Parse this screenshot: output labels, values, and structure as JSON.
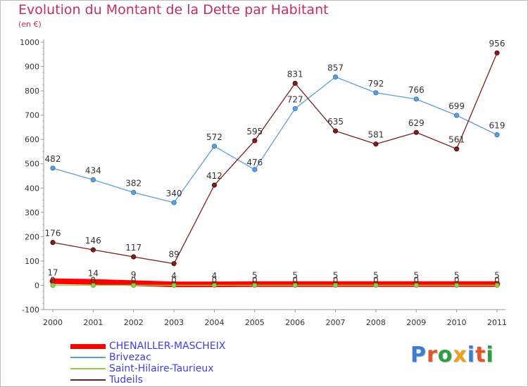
{
  "title": "Evolution du Montant de la Dette par Habitant",
  "subtitle": "(en €)",
  "logo": {
    "text": "Proxiti",
    "colors": [
      "#3b7fd0",
      "#e0552a",
      "#2e9e3e",
      "#f0a020",
      "#3b7fd0",
      "#e0552a",
      "#2e9e3e"
    ]
  },
  "chart_data": {
    "type": "line",
    "title": "Evolution du Montant de la Dette par Habitant",
    "ylabel": "(en €)",
    "xlabel": "",
    "x": [
      "2000",
      "2001",
      "2002",
      "2003",
      "2004",
      "2005",
      "2006",
      "2007",
      "2008",
      "2009",
      "2010",
      "2011"
    ],
    "ylim": [
      -100,
      1000
    ],
    "yticks": [
      -100,
      0,
      100,
      200,
      300,
      400,
      500,
      600,
      700,
      800,
      900,
      1000
    ],
    "grid": false,
    "legend": "bottom-left",
    "series": [
      {
        "name": "CHENAILLER-MASCHEIX",
        "color": "#ff0000",
        "values": [
          17,
          14,
          9,
          4,
          4,
          5,
          5,
          5,
          5,
          5,
          5,
          5
        ],
        "labels": [
          "17",
          "14",
          "9",
          "4",
          "4",
          "5",
          "5",
          "5",
          "5",
          "5",
          "5",
          "5"
        ]
      },
      {
        "name": "Brivezac",
        "color": "#5f9fd8",
        "values": [
          482,
          434,
          382,
          340,
          572,
          476,
          727,
          857,
          792,
          766,
          699,
          619
        ],
        "labels": [
          "482",
          "434",
          "382",
          "340",
          "572",
          "476",
          "727",
          "857",
          "792",
          "766",
          "699",
          "619"
        ]
      },
      {
        "name": "Saint-Hilaire-Taurieux",
        "color": "#8ed040",
        "values": [
          0,
          0,
          0,
          0,
          0,
          0,
          0,
          0,
          0,
          0,
          0,
          0
        ],
        "labels": [
          "0",
          "0",
          "0",
          "0",
          "0",
          "0",
          "0",
          "0",
          "0",
          "0",
          "0",
          "0"
        ]
      },
      {
        "name": "Tudeils",
        "color": "#7a1e1e",
        "values": [
          176,
          146,
          117,
          89,
          412,
          595,
          831,
          635,
          581,
          629,
          561,
          956
        ],
        "labels": [
          "176",
          "146",
          "117",
          "89",
          "412",
          "595",
          "831",
          "635",
          "581",
          "629",
          "561",
          "956"
        ]
      }
    ]
  }
}
